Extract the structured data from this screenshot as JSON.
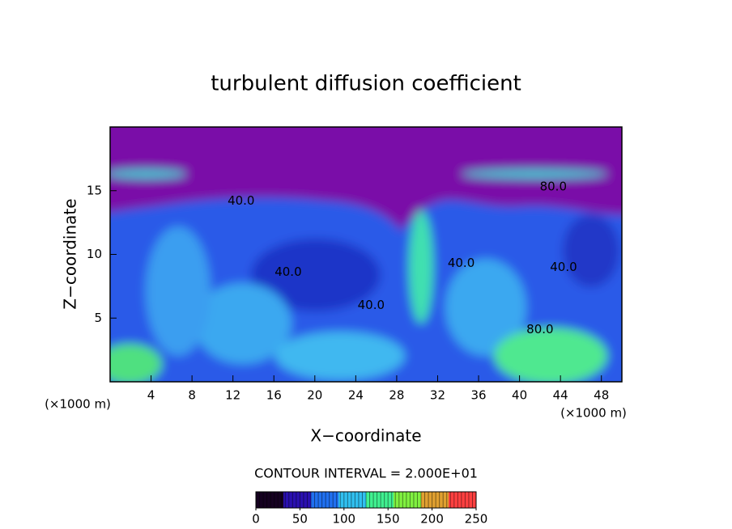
{
  "chart_data": {
    "type": "contour",
    "title": "turbulent diffusion coefficient",
    "xlabel": "X−coordinate",
    "ylabel": "Z−coordinate",
    "x_unit": "(×1000 m)",
    "x_unit_right": "(×1000 m)",
    "xlim": [
      0,
      50
    ],
    "ylim": [
      0,
      20
    ],
    "xticks": [
      4,
      8,
      12,
      16,
      20,
      24,
      28,
      32,
      36,
      40,
      44,
      48
    ],
    "yticks": [
      5,
      10,
      15
    ],
    "contour_interval": "CONTOUR INTERVAL = 2.000E+01",
    "contour_labels": [
      {
        "text": "40.0",
        "x": 12.8,
        "z": 14.2
      },
      {
        "text": "40.0",
        "x": 17.4,
        "z": 8.6
      },
      {
        "text": "40.0",
        "x": 25.5,
        "z": 6.0
      },
      {
        "text": "40.0",
        "x": 34.3,
        "z": 9.3
      },
      {
        "text": "40.0",
        "x": 44.3,
        "z": 9.0
      },
      {
        "text": "80.0",
        "x": 42.0,
        "z": 4.1
      },
      {
        "text": "80.0",
        "x": 43.3,
        "z": 15.3
      }
    ],
    "colorbar": {
      "lim": [
        0,
        250
      ],
      "ticks": [
        0,
        50,
        100,
        150,
        200,
        250
      ],
      "colors": [
        "#150020",
        "#2a10b0",
        "#2070f0",
        "#30c0f0",
        "#40f090",
        "#80f040",
        "#e0a030",
        "#ff4040"
      ]
    }
  }
}
